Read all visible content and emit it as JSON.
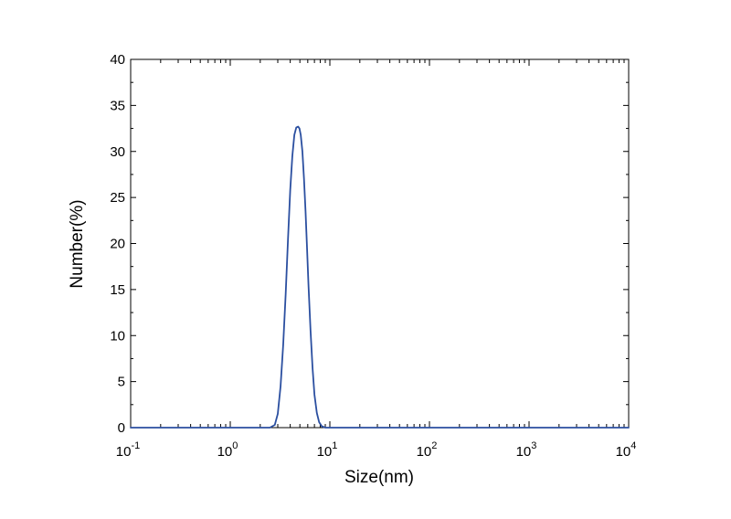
{
  "chart_data": {
    "type": "line",
    "title": "",
    "xlabel": "Size(nm)",
    "ylabel": "Number(%)",
    "x_scale": "log",
    "xlim": [
      0.1,
      10000
    ],
    "ylim": [
      0,
      40
    ],
    "grid": false,
    "legend": "none",
    "x_ticks": [
      {
        "value": 0.1,
        "base": "10",
        "exp": "-1"
      },
      {
        "value": 1,
        "base": "10",
        "exp": "0"
      },
      {
        "value": 10,
        "base": "10",
        "exp": "1"
      },
      {
        "value": 100,
        "base": "10",
        "exp": "2"
      },
      {
        "value": 1000,
        "base": "10",
        "exp": "3"
      },
      {
        "value": 10000,
        "base": "10",
        "exp": "4"
      }
    ],
    "y_ticks": [
      {
        "value": 0,
        "label": "0"
      },
      {
        "value": 5,
        "label": "5"
      },
      {
        "value": 10,
        "label": "10"
      },
      {
        "value": 15,
        "label": "15"
      },
      {
        "value": 20,
        "label": "20"
      },
      {
        "value": 25,
        "label": "25"
      },
      {
        "value": 30,
        "label": "30"
      },
      {
        "value": 35,
        "label": "35"
      },
      {
        "value": 40,
        "label": "40"
      }
    ],
    "series": [
      {
        "color": "#2b4fa0",
        "x": [
          0.1,
          1,
          2.5,
          2.8,
          3.0,
          3.2,
          3.4,
          3.6,
          3.8,
          4.0,
          4.2,
          4.4,
          4.6,
          4.8,
          4.95,
          5.1,
          5.3,
          5.5,
          5.7,
          5.9,
          6.1,
          6.4,
          6.7,
          7.0,
          7.4,
          7.8,
          8.3,
          9.0,
          10,
          100,
          1000,
          10000
        ],
        "y": [
          0,
          0,
          0,
          0.3,
          1.5,
          4.5,
          9.0,
          14.5,
          20.5,
          25.8,
          29.5,
          31.8,
          32.6,
          32.7,
          32.5,
          31.8,
          30.0,
          27.0,
          23.5,
          19.5,
          15.5,
          10.5,
          6.5,
          3.6,
          1.6,
          0.6,
          0.15,
          0,
          0,
          0,
          0,
          0
        ]
      }
    ]
  }
}
